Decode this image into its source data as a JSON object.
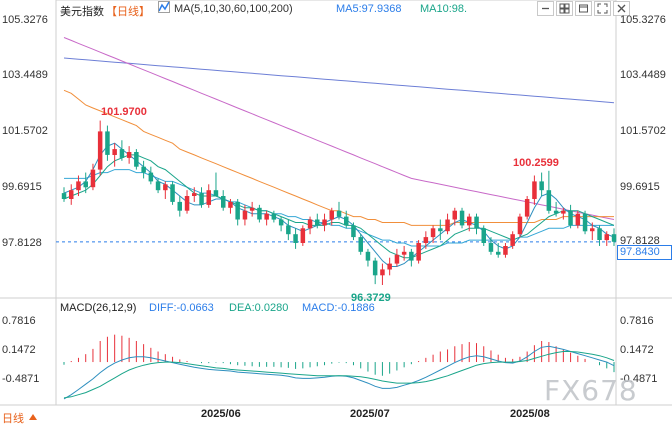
{
  "header": {
    "symbol": "美元指数",
    "period_tag": "【日线】",
    "ma_label": "MA(5,10,30,60,100,200)",
    "ma5": "MA5:97.9368",
    "ma10": "MA10:98."
  },
  "toolbar": {
    "icons": [
      "chart-type-icon",
      "minimize-icon",
      "grid-icon",
      "window-icon",
      "expand-icon",
      "close-icon"
    ]
  },
  "price_axis": [
    "105.3276",
    "103.4489",
    "101.5702",
    "99.6915",
    "97.8128"
  ],
  "macd_axis": [
    "0.7816",
    "0.1472",
    "-0.4871"
  ],
  "annotations": {
    "high1": "101.9700",
    "high2": "100.2599",
    "low": "96.3729"
  },
  "current_price": "97.8430",
  "macd_header": {
    "title": "MACD(26,12,9)",
    "diff": "DIFF:-0.0663",
    "dea": "DEA:0.0280",
    "macd": "MACD:-0.1886"
  },
  "dates": [
    "2025/06",
    "2025/07",
    "2025/08"
  ],
  "period_button": "日线",
  "watermark": "FX678",
  "colors": {
    "up": "#e8303a",
    "down": "#1aa58a",
    "ma5": "#35a7d6",
    "ma10": "#1aa58a",
    "ma30": "#f18f3b",
    "ma60": "#c869c8",
    "ma100": "#6d7fd6",
    "accent": "#2b7de9"
  },
  "chart_data": {
    "type": "candlestick",
    "price_ylim": [
      96.2,
      105.6
    ],
    "macd_ylim": [
      -0.72,
      0.95
    ],
    "ohlc": [
      [
        99.5,
        99.7,
        99.2,
        99.3
      ],
      [
        99.3,
        99.8,
        99.1,
        99.6
      ],
      [
        99.6,
        100.1,
        99.4,
        99.9
      ],
      [
        99.9,
        100.2,
        99.5,
        99.7
      ],
      [
        99.7,
        100.5,
        99.6,
        100.3
      ],
      [
        100.3,
        101.97,
        100.1,
        101.6
      ],
      [
        101.6,
        101.8,
        100.6,
        100.8
      ],
      [
        100.8,
        101.2,
        100.4,
        101.0
      ],
      [
        101.0,
        101.3,
        100.6,
        100.7
      ],
      [
        100.7,
        101.1,
        100.5,
        100.9
      ],
      [
        100.9,
        101.0,
        100.3,
        100.4
      ],
      [
        100.4,
        100.6,
        100.0,
        100.2
      ],
      [
        100.2,
        100.4,
        99.8,
        99.9
      ],
      [
        99.9,
        100.0,
        99.5,
        99.6
      ],
      [
        99.6,
        99.9,
        99.3,
        99.8
      ],
      [
        99.8,
        99.9,
        99.1,
        99.2
      ],
      [
        99.2,
        99.4,
        98.7,
        98.9
      ],
      [
        98.9,
        99.6,
        98.8,
        99.4
      ],
      [
        99.4,
        99.7,
        99.2,
        99.5
      ],
      [
        99.5,
        99.7,
        99.0,
        99.1
      ],
      [
        99.1,
        99.8,
        99.0,
        99.6
      ],
      [
        99.6,
        100.2,
        99.4,
        99.4
      ],
      [
        99.4,
        99.6,
        98.9,
        99.0
      ],
      [
        99.0,
        99.3,
        98.8,
        99.2
      ],
      [
        99.2,
        99.3,
        98.4,
        98.6
      ],
      [
        98.6,
        99.1,
        98.4,
        98.9
      ],
      [
        98.9,
        99.2,
        98.7,
        99.0
      ],
      [
        99.0,
        99.1,
        98.5,
        98.6
      ],
      [
        98.6,
        98.9,
        98.4,
        98.8
      ],
      [
        98.8,
        98.9,
        98.5,
        98.6
      ],
      [
        98.6,
        98.7,
        98.2,
        98.4
      ],
      [
        98.4,
        98.6,
        97.9,
        98.1
      ],
      [
        98.1,
        98.3,
        97.6,
        97.8
      ],
      [
        97.8,
        98.4,
        97.7,
        98.3
      ],
      [
        98.3,
        98.7,
        98.1,
        98.6
      ],
      [
        98.6,
        98.8,
        98.3,
        98.4
      ],
      [
        98.4,
        98.8,
        98.2,
        98.6
      ],
      [
        98.6,
        99.0,
        98.4,
        98.9
      ],
      [
        98.9,
        99.2,
        98.6,
        98.7
      ],
      [
        98.7,
        98.9,
        98.3,
        98.4
      ],
      [
        98.4,
        98.5,
        97.9,
        98.0
      ],
      [
        98.0,
        98.1,
        97.4,
        97.5
      ],
      [
        97.5,
        97.6,
        97.0,
        97.2
      ],
      [
        97.2,
        97.3,
        96.4,
        96.7
      ],
      [
        96.7,
        97.1,
        96.37,
        96.9
      ],
      [
        96.9,
        97.3,
        96.7,
        97.1
      ],
      [
        97.1,
        97.6,
        97.0,
        97.4
      ],
      [
        97.4,
        97.7,
        97.2,
        97.5
      ],
      [
        97.5,
        97.6,
        97.0,
        97.2
      ],
      [
        97.2,
        97.9,
        97.1,
        97.8
      ],
      [
        97.8,
        98.2,
        97.6,
        98.0
      ],
      [
        98.0,
        98.4,
        97.8,
        98.3
      ],
      [
        98.3,
        98.6,
        97.9,
        98.2
      ],
      [
        98.2,
        98.8,
        98.1,
        98.6
      ],
      [
        98.6,
        99.0,
        98.4,
        98.9
      ],
      [
        98.9,
        99.0,
        98.3,
        98.4
      ],
      [
        98.4,
        98.8,
        98.2,
        98.7
      ],
      [
        98.7,
        98.8,
        98.1,
        98.3
      ],
      [
        98.3,
        98.4,
        97.7,
        97.8
      ],
      [
        97.8,
        98.0,
        97.4,
        97.5
      ],
      [
        97.5,
        97.8,
        97.3,
        97.4
      ],
      [
        97.4,
        97.8,
        97.3,
        97.7
      ],
      [
        97.7,
        98.2,
        97.6,
        98.1
      ],
      [
        98.1,
        98.8,
        98.0,
        98.7
      ],
      [
        98.7,
        99.4,
        98.6,
        99.3
      ],
      [
        99.3,
        100.1,
        99.1,
        99.9
      ],
      [
        99.9,
        100.2,
        99.4,
        99.6
      ],
      [
        99.6,
        100.26,
        98.8,
        98.9
      ],
      [
        98.9,
        99.2,
        98.7,
        98.8
      ],
      [
        98.8,
        99.0,
        98.6,
        98.9
      ],
      [
        98.9,
        99.1,
        98.3,
        98.4
      ],
      [
        98.4,
        98.9,
        98.3,
        98.8
      ],
      [
        98.8,
        98.9,
        98.1,
        98.2
      ],
      [
        98.2,
        98.5,
        97.9,
        98.3
      ],
      [
        98.3,
        98.4,
        97.7,
        97.9
      ],
      [
        97.9,
        98.2,
        97.7,
        98.1
      ],
      [
        98.1,
        98.3,
        97.7,
        97.84
      ]
    ],
    "ma5": [
      99.5,
      99.6,
      99.7,
      99.9,
      100.3,
      100.8,
      101.1,
      101.2,
      101.0,
      100.8,
      100.6,
      100.4,
      100.2,
      99.9,
      99.8,
      99.6,
      99.4,
      99.2,
      99.1,
      99.1,
      99.2,
      99.3,
      99.3,
      99.2,
      99.0,
      98.9,
      98.8,
      98.8,
      98.8,
      98.7,
      98.6,
      98.4,
      98.3,
      98.2,
      98.3,
      98.4,
      98.5,
      98.6,
      98.7,
      98.6,
      98.4,
      98.1,
      97.8,
      97.5,
      97.2,
      97.0,
      97.0,
      97.1,
      97.3,
      97.5,
      97.7,
      97.9,
      98.1,
      98.3,
      98.5,
      98.6,
      98.5,
      98.4,
      98.2,
      97.9,
      97.7,
      97.6,
      97.7,
      98.0,
      98.5,
      99.0,
      99.4,
      99.5,
      99.3,
      99.0,
      98.8,
      98.7,
      98.6,
      98.4,
      98.3,
      98.1,
      98.0
    ],
    "ma10": [
      99.3,
      99.4,
      99.5,
      99.6,
      99.8,
      100.1,
      100.4,
      100.6,
      100.7,
      100.8,
      100.8,
      100.7,
      100.6,
      100.4,
      100.3,
      100.1,
      99.9,
      99.7,
      99.5,
      99.4,
      99.4,
      99.4,
      99.3,
      99.2,
      99.1,
      99.0,
      99.0,
      98.9,
      98.9,
      98.8,
      98.7,
      98.6,
      98.5,
      98.5,
      98.4,
      98.4,
      98.4,
      98.5,
      98.5,
      98.4,
      98.4,
      98.3,
      98.1,
      97.9,
      97.7,
      97.5,
      97.4,
      97.3,
      97.3,
      97.4,
      97.5,
      97.6,
      97.7,
      97.9,
      98.1,
      98.2,
      98.3,
      98.3,
      98.3,
      98.2,
      98.1,
      98.0,
      97.9,
      98.0,
      98.1,
      98.3,
      98.5,
      98.7,
      98.8,
      98.9,
      98.9,
      98.9,
      98.8,
      98.7,
      98.6,
      98.5,
      98.4
    ],
    "ma30": [
      100.0,
      100.0,
      100.0,
      100.0,
      100.1,
      100.2,
      100.2,
      100.3,
      100.3,
      100.3,
      100.2,
      100.2,
      100.1,
      100.0,
      99.9,
      99.9,
      99.8,
      99.7,
      99.6,
      99.5,
      99.5,
      99.4,
      99.3,
      99.2,
      99.2,
      99.1,
      99.0,
      98.9,
      98.9,
      98.8,
      98.8,
      98.7,
      98.7,
      98.6,
      98.6,
      98.5,
      98.5,
      98.4,
      98.4,
      98.3,
      98.3,
      98.2,
      98.1,
      98.0,
      97.9,
      97.9,
      97.8,
      97.8,
      97.7,
      97.7,
      97.7,
      97.7,
      97.7,
      97.8,
      97.8,
      97.8,
      97.9,
      97.9,
      97.9,
      97.9,
      97.9,
      97.9,
      97.9,
      98.0,
      98.0,
      98.1,
      98.2,
      98.3,
      98.3,
      98.3,
      98.4,
      98.4,
      98.4,
      98.4,
      98.4,
      98.4,
      98.4
    ],
    "ma60": [
      103.0,
      102.9,
      102.7,
      102.5,
      102.4,
      102.3,
      102.2,
      102.1,
      102.0,
      101.9,
      101.8,
      101.6,
      101.5,
      101.4,
      101.3,
      101.2,
      101.0,
      100.9,
      100.8,
      100.7,
      100.6,
      100.5,
      100.4,
      100.3,
      100.2,
      100.1,
      100.0,
      99.9,
      99.8,
      99.7,
      99.6,
      99.5,
      99.4,
      99.3,
      99.2,
      99.1,
      99.0,
      98.9,
      98.9,
      98.8,
      98.7,
      98.7,
      98.6,
      98.6,
      98.5,
      98.5,
      98.5,
      98.5,
      98.4,
      98.4,
      98.4,
      98.4,
      98.4,
      98.4,
      98.5,
      98.5,
      98.5,
      98.5,
      98.5,
      98.5,
      98.5,
      98.5,
      98.5,
      98.5,
      98.5,
      98.5,
      98.6,
      98.6,
      98.6,
      98.7,
      98.7,
      98.7,
      98.7,
      98.7,
      98.7,
      98.7,
      98.7
    ],
    "ma100": [
      104.8,
      104.7,
      104.6,
      104.5,
      104.4,
      104.3,
      104.2,
      104.1,
      104.0,
      103.9,
      103.8,
      103.7,
      103.6,
      103.5,
      103.4,
      103.3,
      103.2,
      103.1,
      103.0,
      102.9,
      102.8,
      102.7,
      102.6,
      102.5,
      102.4,
      102.3,
      102.2,
      102.1,
      102.0,
      101.9,
      101.8,
      101.7,
      101.6,
      101.5,
      101.4,
      101.3,
      101.2,
      101.1,
      101.0,
      100.9,
      100.8,
      100.7,
      100.6,
      100.5,
      100.4,
      100.3,
      100.2,
      100.1,
      100.0,
      99.95,
      99.9,
      99.85,
      99.8,
      99.75,
      99.7,
      99.65,
      99.6,
      99.55,
      99.5,
      99.45,
      99.4,
      99.35,
      99.3,
      99.25,
      99.2,
      99.15,
      99.1,
      99.05,
      99.0,
      98.95,
      98.9,
      98.85,
      98.8,
      98.75,
      98.7,
      98.65,
      98.6
    ],
    "ma200": [
      104.1,
      104.08,
      104.06,
      104.04,
      104.02,
      104.0,
      103.98,
      103.96,
      103.94,
      103.92,
      103.9,
      103.88,
      103.86,
      103.84,
      103.82,
      103.8,
      103.78,
      103.76,
      103.74,
      103.72,
      103.7,
      103.68,
      103.66,
      103.64,
      103.62,
      103.6,
      103.58,
      103.56,
      103.54,
      103.52,
      103.5,
      103.48,
      103.46,
      103.44,
      103.42,
      103.4,
      103.38,
      103.36,
      103.34,
      103.32,
      103.3,
      103.28,
      103.26,
      103.24,
      103.22,
      103.2,
      103.18,
      103.16,
      103.14,
      103.12,
      103.1,
      103.08,
      103.06,
      103.04,
      103.02,
      103.0,
      102.98,
      102.96,
      102.94,
      102.92,
      102.9,
      102.88,
      102.86,
      102.84,
      102.82,
      102.8,
      102.78,
      102.76,
      102.74,
      102.72,
      102.7,
      102.68,
      102.66,
      102.64,
      102.62,
      102.6,
      102.58
    ],
    "macd_hist": [
      -0.05,
      0.02,
      0.08,
      0.15,
      0.25,
      0.4,
      0.48,
      0.52,
      0.5,
      0.46,
      0.4,
      0.34,
      0.27,
      0.2,
      0.15,
      0.1,
      0.05,
      0.02,
      0.0,
      -0.02,
      -0.02,
      -0.01,
      -0.02,
      -0.04,
      -0.06,
      -0.07,
      -0.08,
      -0.09,
      -0.09,
      -0.09,
      -0.1,
      -0.11,
      -0.13,
      -0.12,
      -0.1,
      -0.08,
      -0.06,
      -0.03,
      -0.01,
      -0.02,
      -0.06,
      -0.12,
      -0.18,
      -0.24,
      -0.26,
      -0.22,
      -0.16,
      -0.1,
      -0.04,
      0.02,
      0.08,
      0.14,
      0.2,
      0.24,
      0.3,
      0.34,
      0.38,
      0.36,
      0.3,
      0.22,
      0.14,
      0.08,
      0.06,
      0.1,
      0.2,
      0.32,
      0.4,
      0.38,
      0.3,
      0.24,
      0.18,
      0.12,
      0.06,
      0.0,
      -0.06,
      -0.12,
      -0.19
    ],
    "diff": [
      -0.7,
      -0.62,
      -0.52,
      -0.42,
      -0.32,
      -0.2,
      -0.1,
      -0.02,
      0.04,
      0.08,
      0.1,
      0.1,
      0.08,
      0.05,
      0.02,
      -0.01,
      -0.04,
      -0.07,
      -0.1,
      -0.12,
      -0.14,
      -0.15,
      -0.16,
      -0.17,
      -0.19,
      -0.2,
      -0.21,
      -0.22,
      -0.23,
      -0.24,
      -0.25,
      -0.27,
      -0.3,
      -0.31,
      -0.31,
      -0.3,
      -0.29,
      -0.27,
      -0.26,
      -0.27,
      -0.3,
      -0.35,
      -0.4,
      -0.46,
      -0.5,
      -0.5,
      -0.48,
      -0.44,
      -0.4,
      -0.35,
      -0.29,
      -0.22,
      -0.15,
      -0.08,
      -0.01,
      0.05,
      0.1,
      0.12,
      0.1,
      0.06,
      0.02,
      -0.01,
      -0.02,
      0.02,
      0.1,
      0.2,
      0.28,
      0.3,
      0.27,
      0.24,
      0.2,
      0.16,
      0.12,
      0.08,
      0.04,
      0.0,
      -0.07
    ],
    "dea": [
      -0.68,
      -0.66,
      -0.62,
      -0.58,
      -0.52,
      -0.46,
      -0.38,
      -0.3,
      -0.22,
      -0.15,
      -0.1,
      -0.06,
      -0.03,
      -0.01,
      0.0,
      0.0,
      -0.01,
      -0.03,
      -0.05,
      -0.07,
      -0.09,
      -0.11,
      -0.12,
      -0.14,
      -0.15,
      -0.16,
      -0.17,
      -0.18,
      -0.19,
      -0.2,
      -0.21,
      -0.22,
      -0.23,
      -0.24,
      -0.25,
      -0.26,
      -0.26,
      -0.26,
      -0.26,
      -0.26,
      -0.27,
      -0.28,
      -0.3,
      -0.33,
      -0.36,
      -0.38,
      -0.4,
      -0.4,
      -0.4,
      -0.39,
      -0.37,
      -0.34,
      -0.3,
      -0.26,
      -0.21,
      -0.16,
      -0.11,
      -0.06,
      -0.03,
      -0.01,
      0.0,
      0.0,
      0.0,
      0.01,
      0.03,
      0.07,
      0.11,
      0.15,
      0.18,
      0.2,
      0.2,
      0.19,
      0.17,
      0.15,
      0.12,
      0.08,
      0.03
    ]
  }
}
